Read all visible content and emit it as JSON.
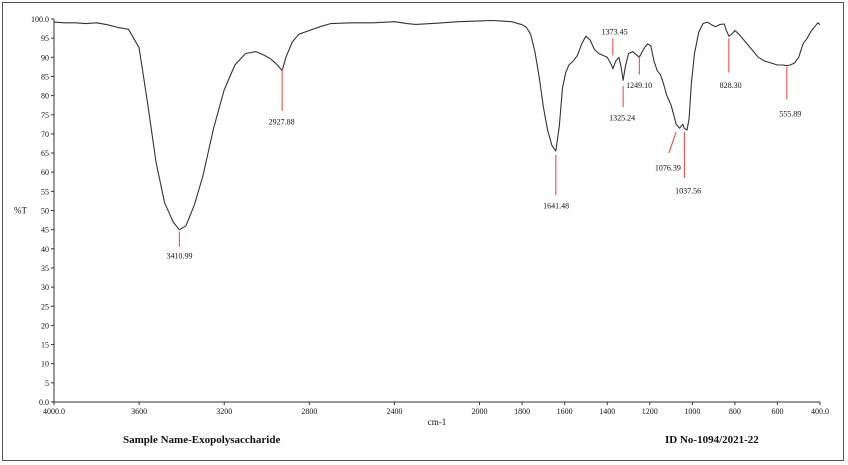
{
  "chart_data": {
    "type": "line",
    "xlabel": "cm-1",
    "ylabel": "%T",
    "xlim": [
      4000,
      400
    ],
    "ylim": [
      0,
      100
    ],
    "x_reversed": true,
    "x_ticks": [
      4000,
      3600,
      3200,
      2800,
      2400,
      2000,
      1800,
      1600,
      1400,
      1200,
      1000,
      800,
      600,
      400
    ],
    "x_tick_labels": [
      "4000.0",
      "3600",
      "3200",
      "2800",
      "2400",
      "2000",
      "1800",
      "1600",
      "1400",
      "1200",
      "1000",
      "800",
      "600",
      "400.0"
    ],
    "y_ticks": [
      0,
      5,
      10,
      15,
      20,
      25,
      30,
      35,
      40,
      45,
      50,
      55,
      60,
      65,
      70,
      75,
      80,
      85,
      90,
      95,
      100
    ],
    "y_tick_labels": [
      "0.0",
      "5",
      "10",
      "15",
      "20",
      "25",
      "30",
      "35",
      "40",
      "45",
      "50",
      "55",
      "60",
      "65",
      "70",
      "75",
      "80",
      "85",
      "90",
      "95",
      "100.0"
    ],
    "grid": false,
    "line_color": "#333333",
    "peak_line_color": "#e8403a",
    "series": [
      {
        "x": [
          4000,
          3950,
          3900,
          3850,
          3800,
          3750,
          3700,
          3650,
          3600,
          3560,
          3520,
          3480,
          3440,
          3410.99,
          3380,
          3340,
          3300,
          3250,
          3200,
          3150,
          3100,
          3050,
          3010,
          2980,
          2950,
          2927.88,
          2910,
          2880,
          2850,
          2800,
          2750,
          2700,
          2600,
          2500,
          2400,
          2340,
          2300,
          2200,
          2100,
          2000,
          1950,
          1900,
          1850,
          1800,
          1780,
          1760,
          1740,
          1720,
          1700,
          1680,
          1660,
          1641.48,
          1625,
          1610,
          1595,
          1580,
          1560,
          1540,
          1520,
          1500,
          1480,
          1460,
          1440,
          1420,
          1400,
          1390,
          1380,
          1373.45,
          1360,
          1345,
          1335,
          1325.24,
          1315,
          1300,
          1280,
          1260,
          1249.1,
          1240,
          1225,
          1210,
          1195,
          1180,
          1165,
          1150,
          1135,
          1120,
          1100,
          1085,
          1076.39,
          1060,
          1045,
          1037.56,
          1025,
          1015,
          1005,
          990,
          970,
          950,
          930,
          910,
          890,
          870,
          850,
          840,
          828.3,
          815,
          800,
          780,
          750,
          720,
          690,
          660,
          630,
          600,
          575,
          555.89,
          540,
          520,
          500,
          480,
          460,
          440,
          425,
          410,
          400
        ],
        "y": [
          99.2,
          99.0,
          99.0,
          98.8,
          99.0,
          98.5,
          97.8,
          97.3,
          92.5,
          78.0,
          62.5,
          52.0,
          47.0,
          45.0,
          46.0,
          51.5,
          59.0,
          71.5,
          81.5,
          88.0,
          91.0,
          91.5,
          90.5,
          89.5,
          88.0,
          86.5,
          90.0,
          94.0,
          96.0,
          97.0,
          98.0,
          98.8,
          99.0,
          99.0,
          99.3,
          98.8,
          98.6,
          98.9,
          99.3,
          99.5,
          99.6,
          99.5,
          99.3,
          98.5,
          97.8,
          96.0,
          91.5,
          85.0,
          77.0,
          71.0,
          67.0,
          65.5,
          72.0,
          82.0,
          86.0,
          88.0,
          89.0,
          90.5,
          93.5,
          95.5,
          94.5,
          92.0,
          91.0,
          90.5,
          90.0,
          89.0,
          88.0,
          87.0,
          89.0,
          90.0,
          87.5,
          84.0,
          87.5,
          91.0,
          91.5,
          90.5,
          90.0,
          91.0,
          92.5,
          93.5,
          93.0,
          89.0,
          86.5,
          85.5,
          83.0,
          80.0,
          77.5,
          74.5,
          72.5,
          71.5,
          72.5,
          71.5,
          71.0,
          74.0,
          83.0,
          91.0,
          96.5,
          98.8,
          99.2,
          98.5,
          98.0,
          98.6,
          98.7,
          97.0,
          95.5,
          96.0,
          97.0,
          96.0,
          94.0,
          92.0,
          90.0,
          89.0,
          88.5,
          88.0,
          88.0,
          87.8,
          88.0,
          88.5,
          90.0,
          93.5,
          95.0,
          97.0,
          98.0,
          99.0,
          98.5
        ]
      }
    ],
    "annotations": [
      {
        "label": "3410.99",
        "x": 3410.99,
        "y_start": 44.5,
        "y_end": 40.5,
        "lx": 3410,
        "ly": 37.5,
        "anchor": "middle"
      },
      {
        "label": "2927.88",
        "x": 2927.88,
        "y_start": 87.0,
        "y_end": 76.0,
        "lx": 2930,
        "ly": 72.5,
        "anchor": "middle"
      },
      {
        "label": "1641.48",
        "x": 1641.48,
        "y_start": 64.5,
        "y_end": 54.0,
        "lx": 1640,
        "ly": 50.5,
        "anchor": "middle"
      },
      {
        "label": "1373.45",
        "x": 1373.45,
        "y_start": 90.5,
        "y_end": 95.0,
        "lx": 1365,
        "ly": 96.0,
        "anchor": "middle"
      },
      {
        "label": "1325.24",
        "x": 1325.24,
        "y_start": 82.5,
        "y_end": 77.0,
        "lx": 1330,
        "ly": 73.5,
        "anchor": "middle"
      },
      {
        "label": "1249.10",
        "x": 1249.1,
        "y_start": 90.5,
        "y_end": 85.5,
        "lx": 1250,
        "ly": 82.0,
        "anchor": "middle"
      },
      {
        "label": "1076.39",
        "x": 1076.39,
        "y_start": 70.5,
        "y_end": 65.0,
        "lx": 1115,
        "ly": 60.5,
        "anchor": "middle",
        "x_end": 1110
      },
      {
        "label": "1037.56",
        "x": 1037.56,
        "y_start": 70.5,
        "y_end": 58.5,
        "lx": 1020,
        "ly": 54.5,
        "anchor": "middle"
      },
      {
        "label": "828.30",
        "x": 828.3,
        "y_start": 95.0,
        "y_end": 86.0,
        "lx": 820,
        "ly": 82.0,
        "anchor": "middle"
      },
      {
        "label": "555.89",
        "x": 555.89,
        "y_start": 87.5,
        "y_end": 79.0,
        "lx": 540,
        "ly": 74.5,
        "anchor": "middle"
      }
    ]
  },
  "footer": {
    "sample_name": "Sample Name-Exopolysaccharide",
    "id_no": "ID No-1094/2021-22"
  }
}
